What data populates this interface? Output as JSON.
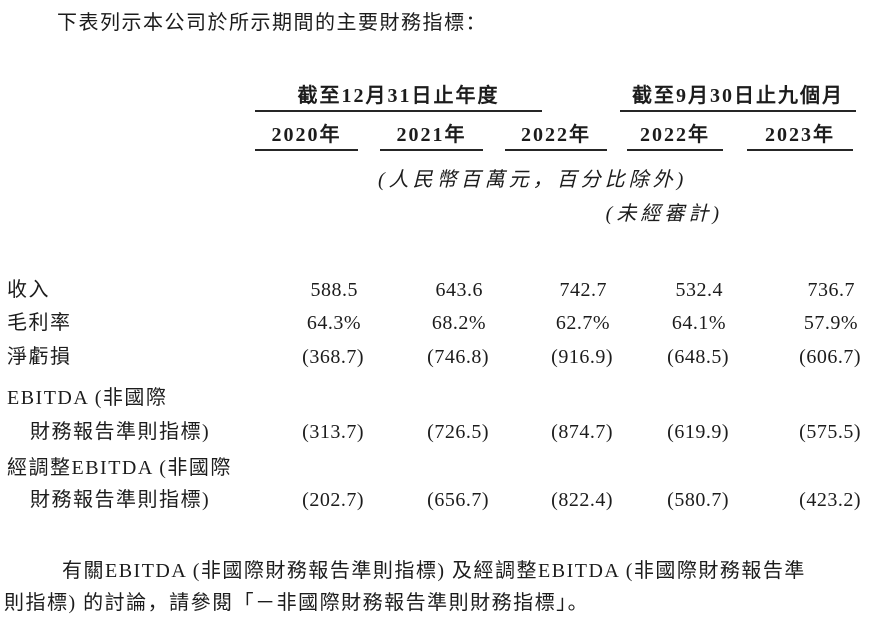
{
  "intro": "下表列示本公司於所示期間的主要財務指標：",
  "table": {
    "col_groups": [
      {
        "label": "截至12月31日止年度"
      },
      {
        "label": "截至9月30日止九個月"
      }
    ],
    "col_years": [
      "2020年",
      "2021年",
      "2022年",
      "2022年",
      "2023年"
    ],
    "unit_note": "(人民幣百萬元，百分比除外)",
    "audit_note": "(未經審計)",
    "rows": [
      {
        "label": "收入",
        "values": [
          "588.5",
          "643.6",
          "742.7",
          "532.4",
          "736.7"
        ]
      },
      {
        "label": "毛利率",
        "values": [
          "64.3%",
          "68.2%",
          "62.7%",
          "64.1%",
          "57.9%"
        ]
      },
      {
        "label": "淨虧損",
        "values": [
          "(368.7)",
          "(746.8)",
          "(916.9)",
          "(648.5)",
          "(606.7)"
        ]
      },
      {
        "label_line1": "EBITDA (非國際",
        "label_line2": "財務報告準則指標)",
        "values": [
          "(313.7)",
          "(726.5)",
          "(874.7)",
          "(619.9)",
          "(575.5)"
        ]
      },
      {
        "label_line1": "經調整EBITDA (非國際",
        "label_line2": "財務報告準則指標)",
        "values": [
          "(202.7)",
          "(656.7)",
          "(822.4)",
          "(580.7)",
          "(423.2)"
        ]
      }
    ]
  },
  "footer": {
    "line1": "有關EBITDA (非國際財務報告準則指標) 及經調整EBITDA (非國際財務報告準",
    "line2": "則指標) 的討論，請參閱「－非國際財務報告準則財務指標」。"
  },
  "colors": {
    "text": "#1c1c1c",
    "rule": "#262626",
    "background": "#ffffff"
  }
}
